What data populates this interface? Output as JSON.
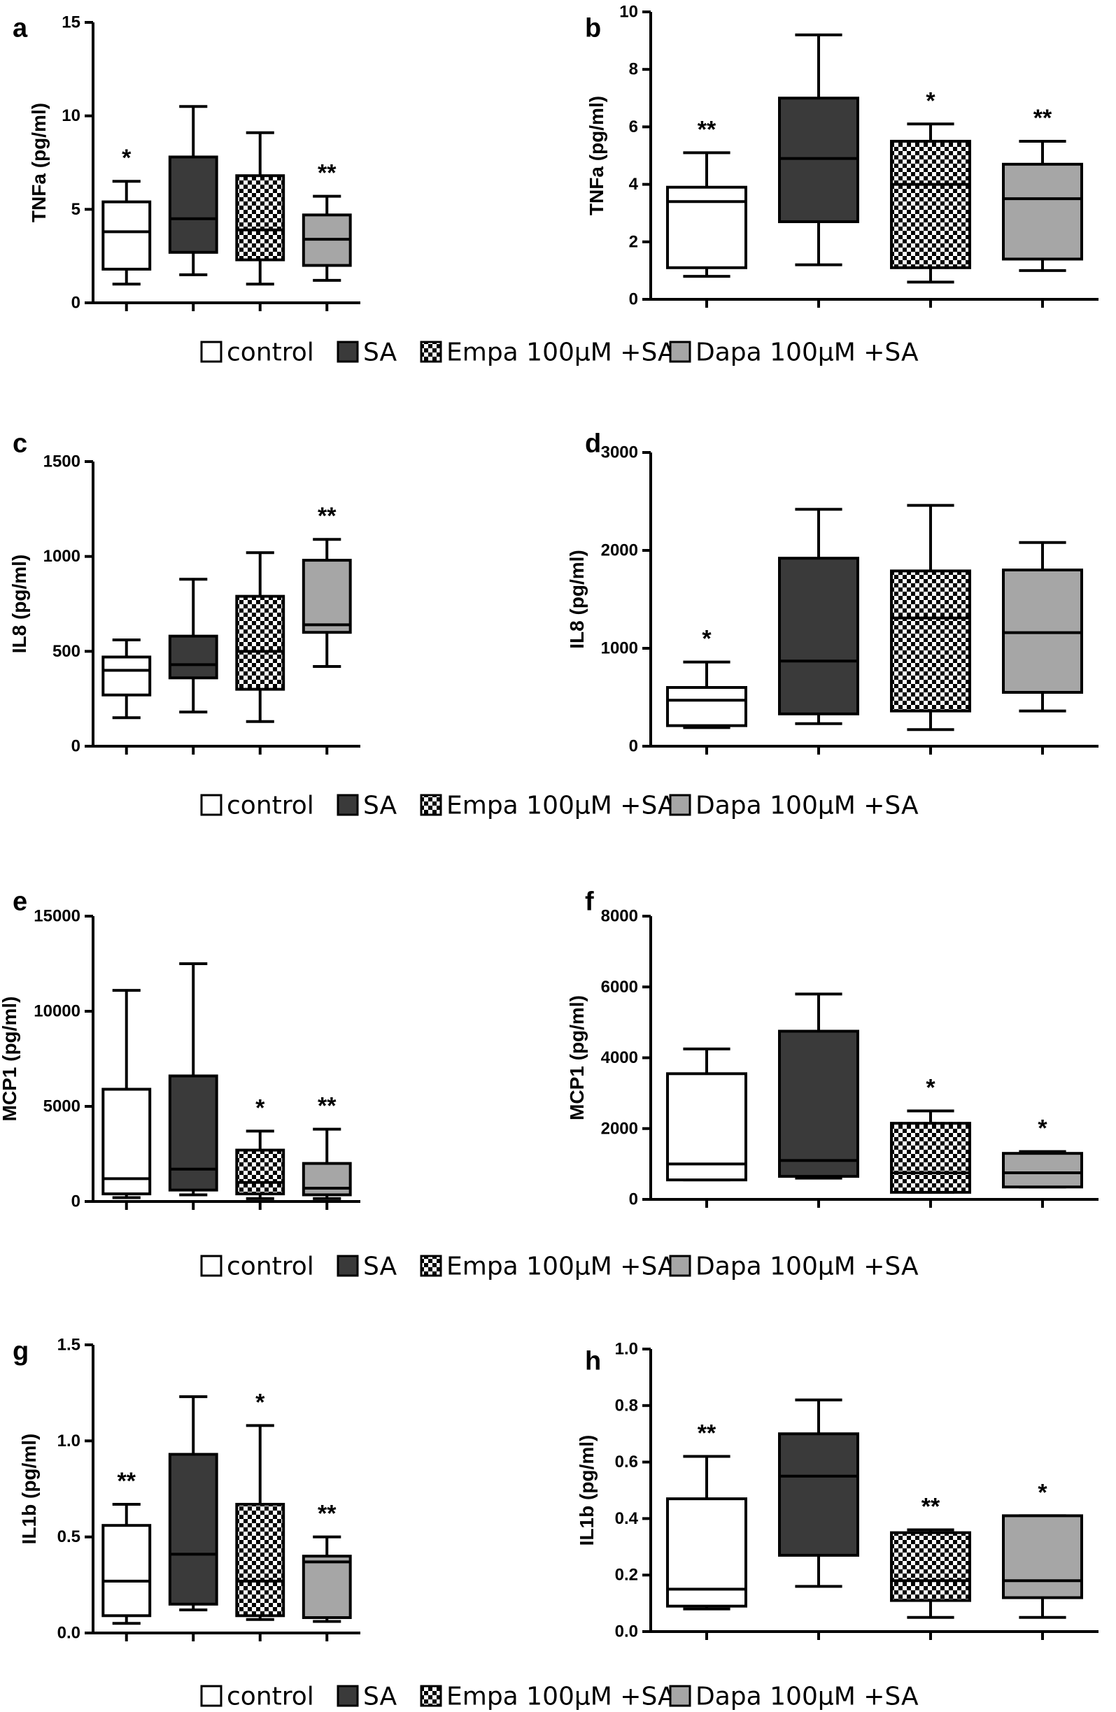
{
  "legend": [
    {
      "label": "control",
      "fill": "white"
    },
    {
      "label": "SA",
      "fill": "dark"
    },
    {
      "label": "Empa 100µM +SA",
      "fill": "check"
    },
    {
      "label": "Dapa 100µM +SA",
      "fill": "grey"
    }
  ],
  "colors": {
    "dark": "#3a3a3a",
    "grey": "#a6a6a6",
    "white": "#ffffff",
    "stroke": "#000000"
  },
  "chart_data": [
    {
      "panel": "a",
      "type": "box",
      "ylabel": "TNFa (pg/ml)",
      "ylim": [
        0,
        15
      ],
      "yticks": [
        0,
        5,
        10,
        15
      ],
      "yticklabels": [
        "0",
        "5",
        "10",
        "15"
      ],
      "groups": [
        "control",
        "SA",
        "Empa 100µM +SA",
        "Dapa 100µM +SA"
      ],
      "boxes": [
        {
          "min": 1.0,
          "q1": 1.8,
          "median": 3.8,
          "q3": 5.4,
          "max": 6.5,
          "sig": "*"
        },
        {
          "min": 1.5,
          "q1": 2.7,
          "median": 4.5,
          "q3": 7.8,
          "max": 10.5,
          "sig": ""
        },
        {
          "min": 1.0,
          "q1": 2.3,
          "median": 3.9,
          "q3": 6.8,
          "max": 9.1,
          "sig": ""
        },
        {
          "min": 1.2,
          "q1": 2.0,
          "median": 3.4,
          "q3": 4.7,
          "max": 5.7,
          "sig": "**"
        }
      ]
    },
    {
      "panel": "b",
      "type": "box",
      "ylabel": "TNFa (pg/ml)",
      "ylim": [
        0,
        10
      ],
      "yticks": [
        0,
        2,
        4,
        6,
        8,
        10
      ],
      "yticklabels": [
        "0",
        "2",
        "4",
        "6",
        "8",
        "10"
      ],
      "groups": [
        "control",
        "SA",
        "Empa 100µM +SA",
        "Dapa 100µM +SA"
      ],
      "boxes": [
        {
          "min": 0.8,
          "q1": 1.1,
          "median": 3.4,
          "q3": 3.9,
          "max": 5.1,
          "sig": "**"
        },
        {
          "min": 1.2,
          "q1": 2.7,
          "median": 4.9,
          "q3": 7.0,
          "max": 9.2,
          "sig": ""
        },
        {
          "min": 0.6,
          "q1": 1.1,
          "median": 4.0,
          "q3": 5.5,
          "max": 6.1,
          "sig": "*"
        },
        {
          "min": 1.0,
          "q1": 1.4,
          "median": 3.5,
          "q3": 4.7,
          "max": 5.5,
          "sig": "**"
        }
      ]
    },
    {
      "panel": "c",
      "type": "box",
      "ylabel": "IL8 (pg/ml)",
      "ylim": [
        0,
        1500
      ],
      "yticks": [
        0,
        500,
        1000,
        1500
      ],
      "yticklabels": [
        "0",
        "500",
        "1000",
        "1500"
      ],
      "groups": [
        "control",
        "SA",
        "Empa 100µM +SA",
        "Dapa 100µM +SA"
      ],
      "boxes": [
        {
          "min": 150,
          "q1": 270,
          "median": 400,
          "q3": 470,
          "max": 560,
          "sig": ""
        },
        {
          "min": 180,
          "q1": 360,
          "median": 430,
          "q3": 580,
          "max": 880,
          "sig": ""
        },
        {
          "min": 130,
          "q1": 300,
          "median": 500,
          "q3": 790,
          "max": 1020,
          "sig": ""
        },
        {
          "min": 420,
          "q1": 600,
          "median": 640,
          "q3": 980,
          "max": 1090,
          "sig": "**"
        }
      ]
    },
    {
      "panel": "d",
      "type": "box",
      "ylabel": "IL8 (pg/ml)",
      "ylim": [
        0,
        3000
      ],
      "yticks": [
        0,
        1000,
        2000,
        3000
      ],
      "yticklabels": [
        "0",
        "1000",
        "2000",
        "3000"
      ],
      "groups": [
        "control",
        "SA",
        "Empa 100µM +SA",
        "Dapa 100µM +SA"
      ],
      "boxes": [
        {
          "min": 190,
          "q1": 210,
          "median": 470,
          "q3": 600,
          "max": 860,
          "sig": "*"
        },
        {
          "min": 230,
          "q1": 330,
          "median": 870,
          "q3": 1920,
          "max": 2420,
          "sig": ""
        },
        {
          "min": 170,
          "q1": 360,
          "median": 1310,
          "q3": 1790,
          "max": 2460,
          "sig": ""
        },
        {
          "min": 360,
          "q1": 550,
          "median": 1160,
          "q3": 1800,
          "max": 2080,
          "sig": ""
        }
      ]
    },
    {
      "panel": "e",
      "type": "box",
      "ylabel": "MCP1 (pg/ml)",
      "ylim": [
        0,
        15000
      ],
      "yticks": [
        0,
        5000,
        10000,
        15000
      ],
      "yticklabels": [
        "0",
        "5000",
        "10000",
        "15000"
      ],
      "groups": [
        "control",
        "SA",
        "Empa 100µM +SA",
        "Dapa 100µM +SA"
      ],
      "boxes": [
        {
          "min": 200,
          "q1": 400,
          "median": 1200,
          "q3": 5900,
          "max": 11100,
          "sig": ""
        },
        {
          "min": 350,
          "q1": 600,
          "median": 1700,
          "q3": 6600,
          "max": 12500,
          "sig": ""
        },
        {
          "min": 150,
          "q1": 400,
          "median": 1000,
          "q3": 2700,
          "max": 3700,
          "sig": "*"
        },
        {
          "min": 150,
          "q1": 350,
          "median": 700,
          "q3": 2000,
          "max": 3800,
          "sig": "**"
        }
      ]
    },
    {
      "panel": "f",
      "type": "box",
      "ylabel": "MCP1 (pg/ml)",
      "ylim": [
        0,
        8000
      ],
      "yticks": [
        0,
        2000,
        4000,
        6000,
        8000
      ],
      "yticklabels": [
        "0",
        "2000",
        "4000",
        "6000",
        "8000"
      ],
      "groups": [
        "control",
        "SA",
        "Empa 100µM +SA",
        "Dapa 100µM +SA"
      ],
      "boxes": [
        {
          "min": 550,
          "q1": 550,
          "median": 1000,
          "q3": 3550,
          "max": 4250,
          "sig": ""
        },
        {
          "min": 600,
          "q1": 650,
          "median": 1100,
          "q3": 4750,
          "max": 5800,
          "sig": ""
        },
        {
          "min": 200,
          "q1": 200,
          "median": 750,
          "q3": 2150,
          "max": 2500,
          "sig": "*"
        },
        {
          "min": 350,
          "q1": 350,
          "median": 750,
          "q3": 1300,
          "max": 1350,
          "sig": "*"
        }
      ]
    },
    {
      "panel": "g",
      "type": "box",
      "ylabel": "IL1b (pg/ml)",
      "ylim": [
        0,
        1.5
      ],
      "yticks": [
        0,
        0.5,
        1.0,
        1.5
      ],
      "yticklabels": [
        "0.0",
        "0.5",
        "1.0",
        "1.5"
      ],
      "groups": [
        "control",
        "SA",
        "Empa 100µM +SA",
        "Dapa 100µM +SA"
      ],
      "boxes": [
        {
          "min": 0.05,
          "q1": 0.09,
          "median": 0.27,
          "q3": 0.56,
          "max": 0.67,
          "sig": "**"
        },
        {
          "min": 0.12,
          "q1": 0.15,
          "median": 0.41,
          "q3": 0.93,
          "max": 1.23,
          "sig": ""
        },
        {
          "min": 0.07,
          "q1": 0.09,
          "median": 0.27,
          "q3": 0.67,
          "max": 1.08,
          "sig": "*"
        },
        {
          "min": 0.06,
          "q1": 0.08,
          "median": 0.37,
          "q3": 0.4,
          "max": 0.5,
          "sig": "**"
        }
      ]
    },
    {
      "panel": "h",
      "type": "box",
      "ylabel": "IL1b (pg/ml)",
      "ylim": [
        0,
        1.0
      ],
      "yticks": [
        0,
        0.2,
        0.4,
        0.6,
        0.8,
        1.0
      ],
      "yticklabels": [
        "0.0",
        "0.2",
        "0.4",
        "0.6",
        "0.8",
        "1.0"
      ],
      "groups": [
        "control",
        "SA",
        "Empa 100µM +SA",
        "Dapa 100µM +SA"
      ],
      "boxes": [
        {
          "min": 0.08,
          "q1": 0.09,
          "median": 0.15,
          "q3": 0.47,
          "max": 0.62,
          "sig": "**"
        },
        {
          "min": 0.16,
          "q1": 0.27,
          "median": 0.55,
          "q3": 0.7,
          "max": 0.82,
          "sig": ""
        },
        {
          "min": 0.05,
          "q1": 0.11,
          "median": 0.18,
          "q3": 0.35,
          "max": 0.36,
          "sig": "**"
        },
        {
          "min": 0.05,
          "q1": 0.12,
          "median": 0.18,
          "q3": 0.41,
          "max": 0.41,
          "sig": "*"
        }
      ]
    }
  ]
}
